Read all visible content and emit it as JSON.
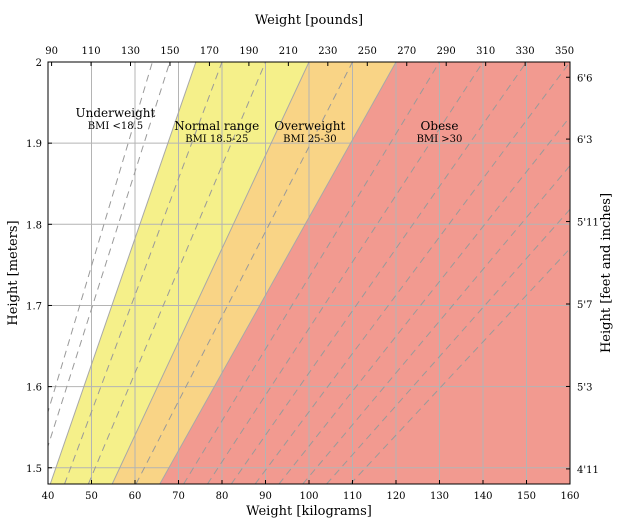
{
  "chart_data": {
    "type": "area",
    "title": "",
    "xlabel": "Weight [kilograms]",
    "x2label": "Weight [pounds]",
    "ylabel": "Height [meters]",
    "y2label": "Height [feet and inches]",
    "xlim": [
      40,
      160
    ],
    "ylim": [
      1.48,
      2.0
    ],
    "x_ticks": [
      40,
      50,
      60,
      70,
      80,
      90,
      100,
      110,
      120,
      130,
      140,
      150,
      160
    ],
    "y_ticks": [
      1.5,
      1.6,
      1.7,
      1.8,
      1.9,
      2
    ],
    "x2_ticks": [
      {
        "label": "90",
        "lb": 90
      },
      {
        "label": "110",
        "lb": 110
      },
      {
        "label": "130",
        "lb": 130
      },
      {
        "label": "150",
        "lb": 150
      },
      {
        "label": "170",
        "lb": 170
      },
      {
        "label": "190",
        "lb": 190
      },
      {
        "label": "210",
        "lb": 210
      },
      {
        "label": "230",
        "lb": 230
      },
      {
        "label": "250",
        "lb": 250
      },
      {
        "label": "270",
        "lb": 270
      },
      {
        "label": "290",
        "lb": 290
      },
      {
        "label": "310",
        "lb": 310
      },
      {
        "label": "330",
        "lb": 330
      },
      {
        "label": "350",
        "lb": 350
      }
    ],
    "y2_ticks": [
      {
        "label": "4'11",
        "inches": 59
      },
      {
        "label": "5'3",
        "inches": 63
      },
      {
        "label": "5'7",
        "inches": 67
      },
      {
        "label": "5'11",
        "inches": 71
      },
      {
        "label": "6'3",
        "inches": 75
      },
      {
        "label": "6'6",
        "inches": 78
      }
    ],
    "regions": [
      {
        "name": "Underweight",
        "bmi_label": "BMI <18.5",
        "bmi_min": 0,
        "bmi_max": 18.5,
        "color": "#ffffff"
      },
      {
        "name": "Normal range",
        "bmi_label": "BMI 18.5-25",
        "bmi_min": 18.5,
        "bmi_max": 25,
        "color": "#f5f08a"
      },
      {
        "name": "Overweight",
        "bmi_label": "BMI 25-30",
        "bmi_min": 25,
        "bmi_max": 30,
        "color": "#f9d486"
      },
      {
        "name": "Obese",
        "bmi_label": "BMI >30",
        "bmi_min": 30,
        "bmi_max": 100,
        "color": "#f29a90"
      }
    ],
    "bmi_dashed_lines": [
      16,
      17,
      20,
      22.5,
      27.5,
      32.5,
      35,
      37.5,
      40,
      42.5,
      45,
      47.5,
      50
    ],
    "grid": true,
    "colors": {
      "grid": "#b4b4b4",
      "dashed": "#9a9a9a",
      "boundary": "#a8a8a8",
      "frame": "#000000"
    }
  }
}
